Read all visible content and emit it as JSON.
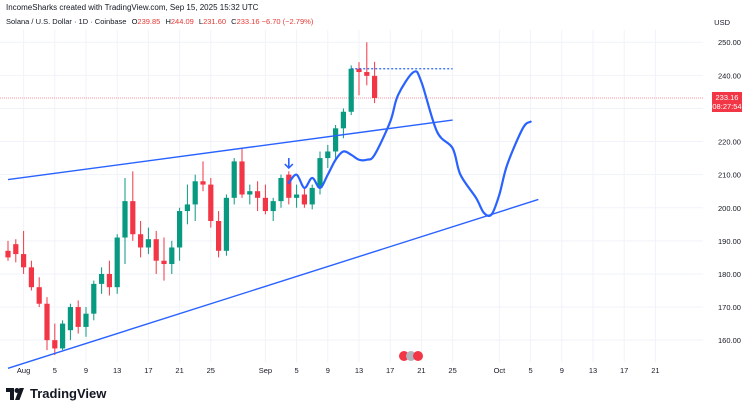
{
  "attribution": "IncomeSharks created with TradingView.com, Sep 15, 2025 15:32 UTC",
  "legend": {
    "symbol": "Solana / U.S. Dollar · 1D · Coinbase",
    "open_label": "O",
    "open_value": "239.85",
    "high_label": "H",
    "high_value": "244.09",
    "low_label": "L",
    "low_value": "231.60",
    "close_label": "C",
    "close_value": "233.16",
    "change": "−6.70 (−2.79%)"
  },
  "currency": "USD",
  "price_tag": {
    "price": "233.16",
    "countdown": "08:27:54"
  },
  "logo_text": "TradingView",
  "colors": {
    "up": "#089981",
    "down": "#f23645",
    "drawing": "#2962ff",
    "accent": "#2962ff"
  },
  "chart_data": {
    "type": "candlestick",
    "y_axis": {
      "ticks": [
        160,
        170,
        180,
        190,
        200,
        210,
        220,
        230,
        240,
        250
      ],
      "ylim": [
        153.4,
        253.7
      ],
      "position": "right"
    },
    "x_axis": {
      "ticks": [
        "Aug",
        "5",
        "9",
        "13",
        "17",
        "21",
        "25",
        "Sep",
        "5",
        "9",
        "13",
        "17",
        "21",
        "25",
        "Oct",
        "5",
        "9",
        "13",
        "17",
        "21"
      ],
      "start": "2025-07-30"
    },
    "grid": true,
    "candles": [
      {
        "date": "2025-07-30",
        "o": 187.0,
        "h": 190.0,
        "l": 184.0,
        "c": 185.0
      },
      {
        "date": "2025-07-31",
        "o": 189.0,
        "h": 190.5,
        "l": 183.5,
        "c": 186.0
      },
      {
        "date": "2025-08-01",
        "o": 186.0,
        "h": 193.0,
        "l": 180.0,
        "c": 182.0
      },
      {
        "date": "2025-08-02",
        "o": 182.0,
        "h": 184.0,
        "l": 175.0,
        "c": 176.0
      },
      {
        "date": "2025-08-03",
        "o": 176.0,
        "h": 179.0,
        "l": 170.0,
        "c": 171.0
      },
      {
        "date": "2025-08-04",
        "o": 171.0,
        "h": 173.0,
        "l": 157.0,
        "c": 160.0
      },
      {
        "date": "2025-08-05",
        "o": 160.0,
        "h": 165.0,
        "l": 155.5,
        "c": 157.5
      },
      {
        "date": "2025-08-06",
        "o": 157.5,
        "h": 166.0,
        "l": 157.0,
        "c": 165.0
      },
      {
        "date": "2025-08-07",
        "o": 163.0,
        "h": 171.0,
        "l": 160.0,
        "c": 170.0
      },
      {
        "date": "2025-08-08",
        "o": 170.0,
        "h": 172.0,
        "l": 162.0,
        "c": 164.0
      },
      {
        "date": "2025-08-09",
        "o": 164.0,
        "h": 170.0,
        "l": 161.0,
        "c": 168.0
      },
      {
        "date": "2025-08-10",
        "o": 168.0,
        "h": 178.0,
        "l": 166.0,
        "c": 177.0
      },
      {
        "date": "2025-08-11",
        "o": 177.0,
        "h": 182.0,
        "l": 174.0,
        "c": 180.0
      },
      {
        "date": "2025-08-12",
        "o": 180.0,
        "h": 184.0,
        "l": 173.5,
        "c": 176.0
      },
      {
        "date": "2025-08-13",
        "o": 176.0,
        "h": 192.0,
        "l": 174.0,
        "c": 191.0
      },
      {
        "date": "2025-08-14",
        "o": 191.0,
        "h": 209.0,
        "l": 183.0,
        "c": 202.0
      },
      {
        "date": "2025-08-15",
        "o": 202.0,
        "h": 211.0,
        "l": 190.0,
        "c": 192.0
      },
      {
        "date": "2025-08-16",
        "o": 192.0,
        "h": 196.0,
        "l": 185.0,
        "c": 188.0
      },
      {
        "date": "2025-08-17",
        "o": 188.0,
        "h": 194.0,
        "l": 186.0,
        "c": 190.5
      },
      {
        "date": "2025-08-18",
        "o": 190.5,
        "h": 193.0,
        "l": 180.0,
        "c": 184.0
      },
      {
        "date": "2025-08-19",
        "o": 184.0,
        "h": 191.0,
        "l": 178.0,
        "c": 183.0
      },
      {
        "date": "2025-08-20",
        "o": 183.0,
        "h": 190.0,
        "l": 180.0,
        "c": 188.0
      },
      {
        "date": "2025-08-21",
        "o": 188.0,
        "h": 200.0,
        "l": 184.0,
        "c": 199.0
      },
      {
        "date": "2025-08-22",
        "o": 199.0,
        "h": 207.0,
        "l": 195.0,
        "c": 201.0
      },
      {
        "date": "2025-08-23",
        "o": 201.0,
        "h": 210.0,
        "l": 196.0,
        "c": 208.0
      },
      {
        "date": "2025-08-24",
        "o": 208.0,
        "h": 214.0,
        "l": 205.0,
        "c": 207.0
      },
      {
        "date": "2025-08-25",
        "o": 207.0,
        "h": 209.0,
        "l": 194.0,
        "c": 196.0
      },
      {
        "date": "2025-08-26",
        "o": 196.0,
        "h": 199.0,
        "l": 185.0,
        "c": 187.0
      },
      {
        "date": "2025-08-27",
        "o": 187.0,
        "h": 204.0,
        "l": 185.5,
        "c": 203.0
      },
      {
        "date": "2025-08-28",
        "o": 203.0,
        "h": 215.0,
        "l": 201.0,
        "c": 214.0
      },
      {
        "date": "2025-08-29",
        "o": 214.0,
        "h": 218.0,
        "l": 203.0,
        "c": 204.0
      },
      {
        "date": "2025-08-30",
        "o": 204.0,
        "h": 207.0,
        "l": 201.0,
        "c": 205.0
      },
      {
        "date": "2025-08-31",
        "o": 205.0,
        "h": 208.0,
        "l": 199.0,
        "c": 203.0
      },
      {
        "date": "2025-09-01",
        "o": 203.0,
        "h": 207.0,
        "l": 198.0,
        "c": 199.0
      },
      {
        "date": "2025-09-02",
        "o": 199.0,
        "h": 203.0,
        "l": 196.0,
        "c": 202.0
      },
      {
        "date": "2025-09-03",
        "o": 202.0,
        "h": 210.0,
        "l": 200.0,
        "c": 209.0
      },
      {
        "date": "2025-09-04",
        "o": 210.0,
        "h": 211.0,
        "l": 201.0,
        "c": 203.0
      },
      {
        "date": "2025-09-05",
        "o": 203.0,
        "h": 207.0,
        "l": 200.0,
        "c": 204.0
      },
      {
        "date": "2025-09-06",
        "o": 204.0,
        "h": 206.0,
        "l": 200.0,
        "c": 201.0
      },
      {
        "date": "2025-09-07",
        "o": 201.0,
        "h": 207.0,
        "l": 199.5,
        "c": 206.0
      },
      {
        "date": "2025-09-08",
        "o": 206.0,
        "h": 217.0,
        "l": 204.0,
        "c": 215.0
      },
      {
        "date": "2025-09-09",
        "o": 215.0,
        "h": 219.0,
        "l": 212.0,
        "c": 217.0
      },
      {
        "date": "2025-09-10",
        "o": 217.0,
        "h": 225.0,
        "l": 214.0,
        "c": 224.0
      },
      {
        "date": "2025-09-11",
        "o": 224.0,
        "h": 230.0,
        "l": 221.0,
        "c": 229.0
      },
      {
        "date": "2025-09-12",
        "o": 229.0,
        "h": 243.0,
        "l": 228.0,
        "c": 242.0
      },
      {
        "date": "2025-09-13",
        "o": 242.0,
        "h": 244.0,
        "l": 234.0,
        "c": 241.0
      },
      {
        "date": "2025-09-14",
        "o": 241.0,
        "h": 250.0,
        "l": 237.0,
        "c": 239.85
      },
      {
        "date": "2025-09-15",
        "o": 239.85,
        "h": 244.09,
        "l": 231.6,
        "c": 233.16
      }
    ],
    "current_price": 233.16,
    "drawings": {
      "upper_trendline": [
        [
          "2025-07-30",
          208.5
        ],
        [
          "2025-09-25",
          226.5
        ]
      ],
      "lower_trendline": [
        [
          "2025-07-30",
          151.5
        ],
        [
          "2025-10-06",
          202.5
        ]
      ],
      "resistance_dotted": [
        [
          "2025-09-12",
          242.0
        ],
        [
          "2025-09-25",
          242.0
        ]
      ],
      "projection_path": [
        [
          "2025-09-04",
          207.5
        ],
        [
          "2025-09-05",
          210.0
        ],
        [
          "2025-09-06",
          206.0
        ],
        [
          "2025-09-07",
          209.0
        ],
        [
          "2025-09-08",
          206.0
        ],
        [
          "2025-09-09",
          210.0
        ],
        [
          "2025-09-10",
          214.5
        ],
        [
          "2025-09-11",
          217.0
        ],
        [
          "2025-09-12",
          216.0
        ],
        [
          "2025-09-13",
          214.5
        ],
        [
          "2025-09-14",
          214.5
        ],
        [
          "2025-09-15",
          216.0
        ],
        [
          "2025-09-17",
          226.0
        ],
        [
          "2025-09-18",
          234.0
        ],
        [
          "2025-09-20",
          241.0
        ],
        [
          "2025-09-21",
          238.0
        ],
        [
          "2025-09-23",
          223.0
        ],
        [
          "2025-09-25",
          218.0
        ],
        [
          "2025-09-26",
          210.0
        ],
        [
          "2025-09-28",
          203.0
        ],
        [
          "2025-09-29",
          198.5
        ],
        [
          "2025-09-30",
          198.0
        ],
        [
          "2025-10-01",
          204.0
        ],
        [
          "2025-10-02",
          213.0
        ],
        [
          "2025-10-04",
          224.0
        ],
        [
          "2025-10-05",
          226.0
        ]
      ],
      "arrow_down": [
        "2025-09-04",
        212.0
      ]
    }
  }
}
